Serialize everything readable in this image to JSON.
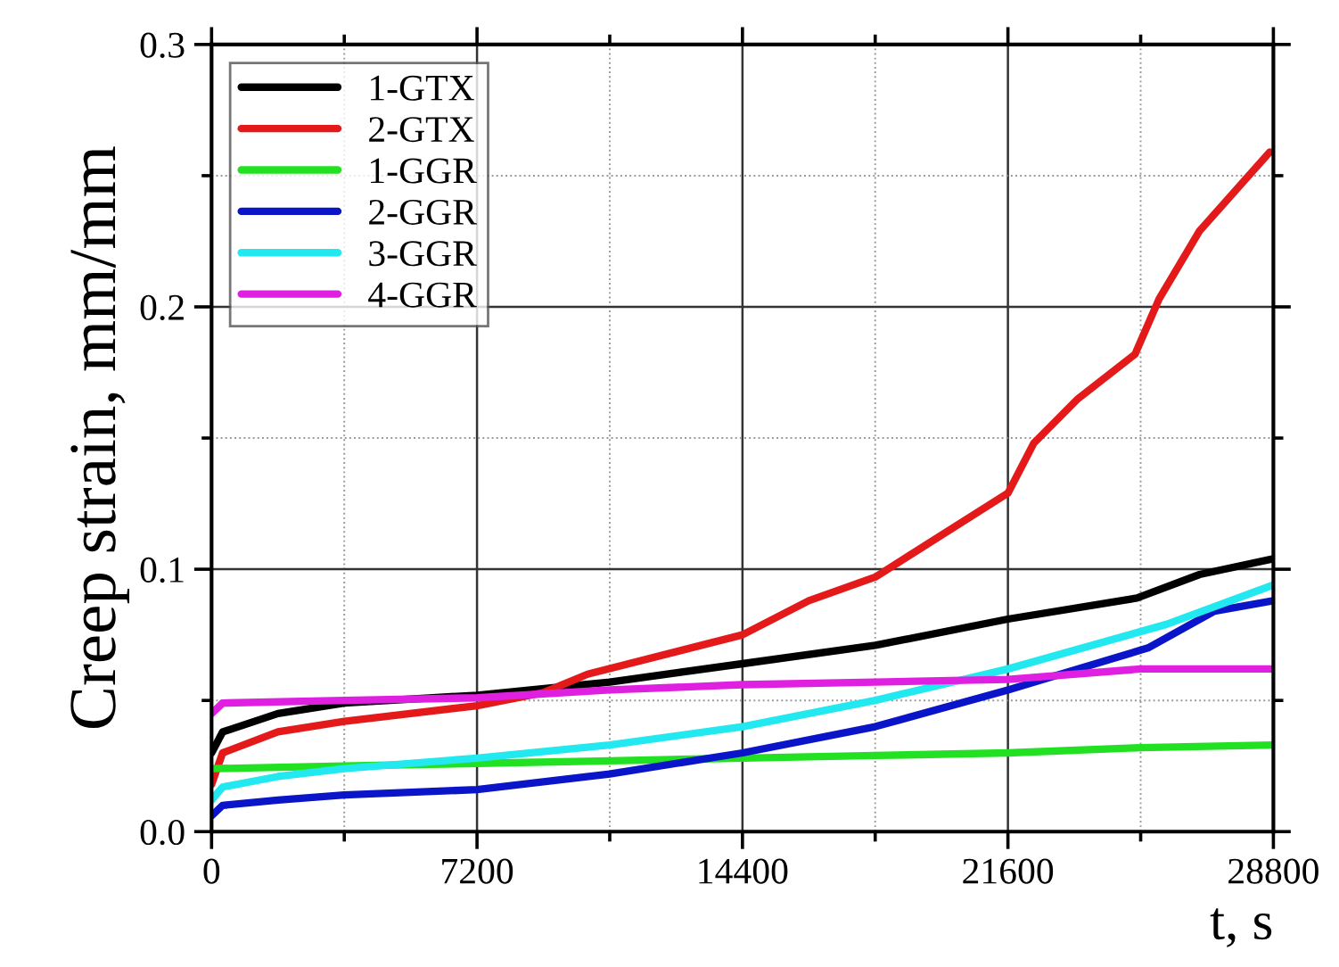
{
  "chart_data": {
    "type": "line",
    "xlabel": "t, s",
    "ylabel": "Creep strain, mm/mm",
    "xlim": [
      0,
      28800
    ],
    "ylim": [
      0,
      0.3
    ],
    "xticks": [
      0,
      7200,
      14400,
      21600,
      28800
    ],
    "yticks": [
      {
        "value": 0,
        "label": "0.0"
      },
      {
        "value": 0.1,
        "label": "0.1"
      },
      {
        "value": 0.2,
        "label": "0.2"
      },
      {
        "value": 0.3,
        "label": "0.3"
      }
    ],
    "grid": true,
    "legend": "top left",
    "line_style": "solid",
    "marker": "none",
    "series": [
      {
        "name": "1-GTX",
        "color": "#000000",
        "x": [
          0,
          300,
          1800,
          3600,
          7200,
          10800,
          14400,
          18000,
          21600,
          25100,
          26800,
          28800
        ],
        "values": [
          0.03,
          0.038,
          0.045,
          0.049,
          0.052,
          0.057,
          0.064,
          0.071,
          0.081,
          0.089,
          0.098,
          0.104
        ]
      },
      {
        "name": "2-GTX",
        "color": "#e41a1a",
        "x": [
          0,
          300,
          1800,
          3600,
          7200,
          9000,
          10200,
          14400,
          16200,
          18000,
          21600,
          22300,
          23500,
          25050,
          25700,
          26800,
          28700
        ],
        "values": [
          0.018,
          0.03,
          0.038,
          0.042,
          0.048,
          0.053,
          0.06,
          0.075,
          0.088,
          0.097,
          0.129,
          0.148,
          0.165,
          0.182,
          0.203,
          0.229,
          0.259
        ]
      },
      {
        "name": "1-GGR",
        "color": "#22e022",
        "x": [
          0,
          3600,
          7200,
          10800,
          14400,
          18000,
          21600,
          25200,
          28800
        ],
        "values": [
          0.024,
          0.025,
          0.026,
          0.027,
          0.028,
          0.029,
          0.03,
          0.032,
          0.033
        ]
      },
      {
        "name": "2-GGR",
        "color": "#0a14c8",
        "x": [
          0,
          300,
          1800,
          3600,
          7200,
          10800,
          14400,
          18000,
          21600,
          25400,
          27200,
          28800
        ],
        "values": [
          0.006,
          0.01,
          0.012,
          0.014,
          0.016,
          0.022,
          0.03,
          0.04,
          0.054,
          0.07,
          0.084,
          0.088
        ]
      },
      {
        "name": "3-GGR",
        "color": "#22e8f0",
        "x": [
          0,
          300,
          1800,
          3600,
          7200,
          10800,
          14400,
          18000,
          21600,
          25900,
          28800
        ],
        "values": [
          0.012,
          0.017,
          0.021,
          0.024,
          0.028,
          0.033,
          0.04,
          0.05,
          0.062,
          0.079,
          0.094
        ]
      },
      {
        "name": "4-GGR",
        "color": "#e020e0",
        "x": [
          0,
          300,
          3600,
          7200,
          10800,
          14400,
          18000,
          21600,
          25200,
          28800
        ],
        "values": [
          0.045,
          0.049,
          0.05,
          0.051,
          0.054,
          0.056,
          0.057,
          0.058,
          0.062,
          0.062
        ]
      }
    ]
  }
}
